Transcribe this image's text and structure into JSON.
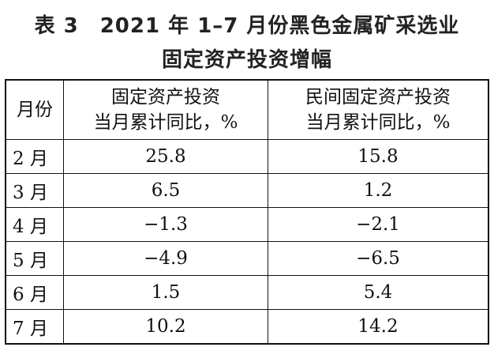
{
  "title": [
    "表 3　2021 年 1–7 月份黑色金属矿采选业",
    "固定资产投资增幅"
  ],
  "table": {
    "header": [
      "月份",
      [
        "固定资产投资",
        "当月累计同比，%"
      ],
      [
        "民间固定资产投资",
        "当月累计同比，%"
      ]
    ],
    "rows": [
      [
        "2 月",
        "25.8",
        "15.8"
      ],
      [
        "3 月",
        "6.5",
        "1.2"
      ],
      [
        "4 月",
        "−1.3",
        "−2.1"
      ],
      [
        "5 月",
        "−4.9",
        "−6.5"
      ],
      [
        "6 月",
        "1.5",
        "5.4"
      ],
      [
        "7 月",
        "10.2",
        "14.2"
      ]
    ]
  }
}
